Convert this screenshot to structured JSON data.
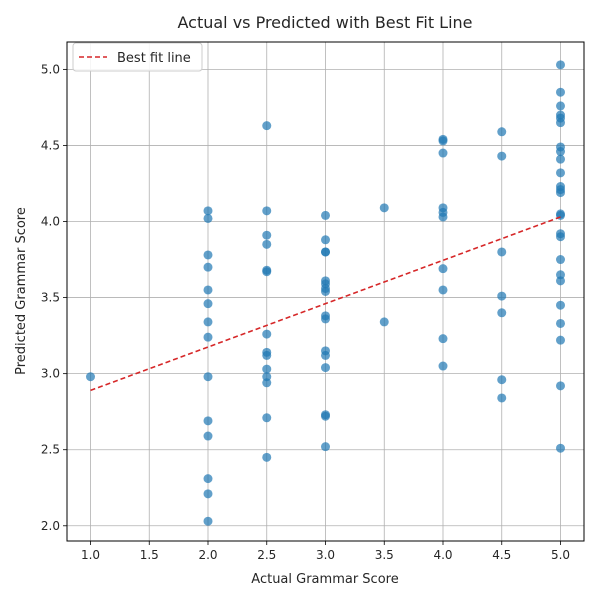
{
  "chart_data": {
    "type": "scatter",
    "title": "Actual vs Predicted with Best Fit Line",
    "xlabel": "Actual Grammar Score",
    "ylabel": "Predicted Grammar Score",
    "xlim": [
      0.8,
      5.2
    ],
    "ylim": [
      1.9,
      5.18
    ],
    "x_ticks": [
      1.0,
      1.5,
      2.0,
      2.5,
      3.0,
      3.5,
      4.0,
      4.5,
      5.0
    ],
    "x_tick_labels": [
      "1.0",
      "1.5",
      "2.0",
      "2.5",
      "3.0",
      "3.5",
      "4.0",
      "4.5",
      "5.0"
    ],
    "y_ticks": [
      2.0,
      2.5,
      3.0,
      3.5,
      4.0,
      4.5,
      5.0
    ],
    "y_tick_labels": [
      "2.0",
      "2.5",
      "3.0",
      "3.5",
      "4.0",
      "4.5",
      "5.0"
    ],
    "grid": true,
    "legend": {
      "position": "top-left",
      "entries": [
        "Best fit line"
      ]
    },
    "colors": {
      "points": "#1f77b4",
      "fit_line": "#d62728",
      "grid": "#b0b0b0",
      "axes": "#000000"
    },
    "series": [
      {
        "kind": "scatter",
        "points": [
          [
            1.0,
            2.98
          ],
          [
            2.0,
            4.07
          ],
          [
            2.0,
            4.02
          ],
          [
            2.0,
            3.78
          ],
          [
            2.0,
            3.7
          ],
          [
            2.0,
            3.55
          ],
          [
            2.0,
            3.46
          ],
          [
            2.0,
            3.34
          ],
          [
            2.0,
            3.24
          ],
          [
            2.0,
            2.98
          ],
          [
            2.0,
            2.69
          ],
          [
            2.0,
            2.59
          ],
          [
            2.0,
            2.31
          ],
          [
            2.0,
            2.21
          ],
          [
            2.0,
            2.03
          ],
          [
            2.5,
            4.63
          ],
          [
            2.5,
            4.07
          ],
          [
            2.5,
            3.91
          ],
          [
            2.5,
            3.85
          ],
          [
            2.5,
            3.68
          ],
          [
            2.5,
            3.67
          ],
          [
            2.5,
            3.26
          ],
          [
            2.5,
            3.14
          ],
          [
            2.5,
            3.12
          ],
          [
            2.5,
            3.03
          ],
          [
            2.5,
            2.98
          ],
          [
            2.5,
            2.94
          ],
          [
            2.5,
            2.71
          ],
          [
            2.5,
            2.45
          ],
          [
            3.0,
            4.04
          ],
          [
            3.0,
            3.88
          ],
          [
            3.0,
            3.8
          ],
          [
            3.0,
            3.8
          ],
          [
            3.0,
            3.61
          ],
          [
            3.0,
            3.59
          ],
          [
            3.0,
            3.56
          ],
          [
            3.0,
            3.54
          ],
          [
            3.0,
            3.38
          ],
          [
            3.0,
            3.36
          ],
          [
            3.0,
            3.15
          ],
          [
            3.0,
            3.12
          ],
          [
            3.0,
            3.04
          ],
          [
            3.0,
            2.73
          ],
          [
            3.0,
            2.72
          ],
          [
            3.0,
            2.52
          ],
          [
            3.5,
            4.09
          ],
          [
            3.5,
            3.34
          ],
          [
            4.0,
            4.54
          ],
          [
            4.0,
            4.53
          ],
          [
            4.0,
            4.45
          ],
          [
            4.0,
            4.09
          ],
          [
            4.0,
            4.06
          ],
          [
            4.0,
            4.03
          ],
          [
            4.0,
            3.69
          ],
          [
            4.0,
            3.55
          ],
          [
            4.0,
            3.23
          ],
          [
            4.0,
            3.05
          ],
          [
            4.5,
            4.59
          ],
          [
            4.5,
            4.43
          ],
          [
            4.5,
            3.8
          ],
          [
            4.5,
            3.51
          ],
          [
            4.5,
            3.4
          ],
          [
            4.5,
            2.96
          ],
          [
            4.5,
            2.84
          ],
          [
            5.0,
            5.03
          ],
          [
            5.0,
            4.85
          ],
          [
            5.0,
            4.76
          ],
          [
            5.0,
            4.7
          ],
          [
            5.0,
            4.68
          ],
          [
            5.0,
            4.65
          ],
          [
            5.0,
            4.49
          ],
          [
            5.0,
            4.46
          ],
          [
            5.0,
            4.41
          ],
          [
            5.0,
            4.32
          ],
          [
            5.0,
            4.23
          ],
          [
            5.0,
            4.21
          ],
          [
            5.0,
            4.19
          ],
          [
            5.0,
            4.05
          ],
          [
            5.0,
            4.04
          ],
          [
            5.0,
            3.92
          ],
          [
            5.0,
            3.9
          ],
          [
            5.0,
            3.75
          ],
          [
            5.0,
            3.65
          ],
          [
            5.0,
            3.61
          ],
          [
            5.0,
            3.45
          ],
          [
            5.0,
            3.33
          ],
          [
            5.0,
            3.22
          ],
          [
            5.0,
            2.92
          ],
          [
            5.0,
            2.51
          ]
        ]
      },
      {
        "kind": "line",
        "name": "Best fit line",
        "style": "dashed",
        "points": [
          [
            1.0,
            2.89
          ],
          [
            5.0,
            4.03
          ]
        ]
      }
    ]
  }
}
